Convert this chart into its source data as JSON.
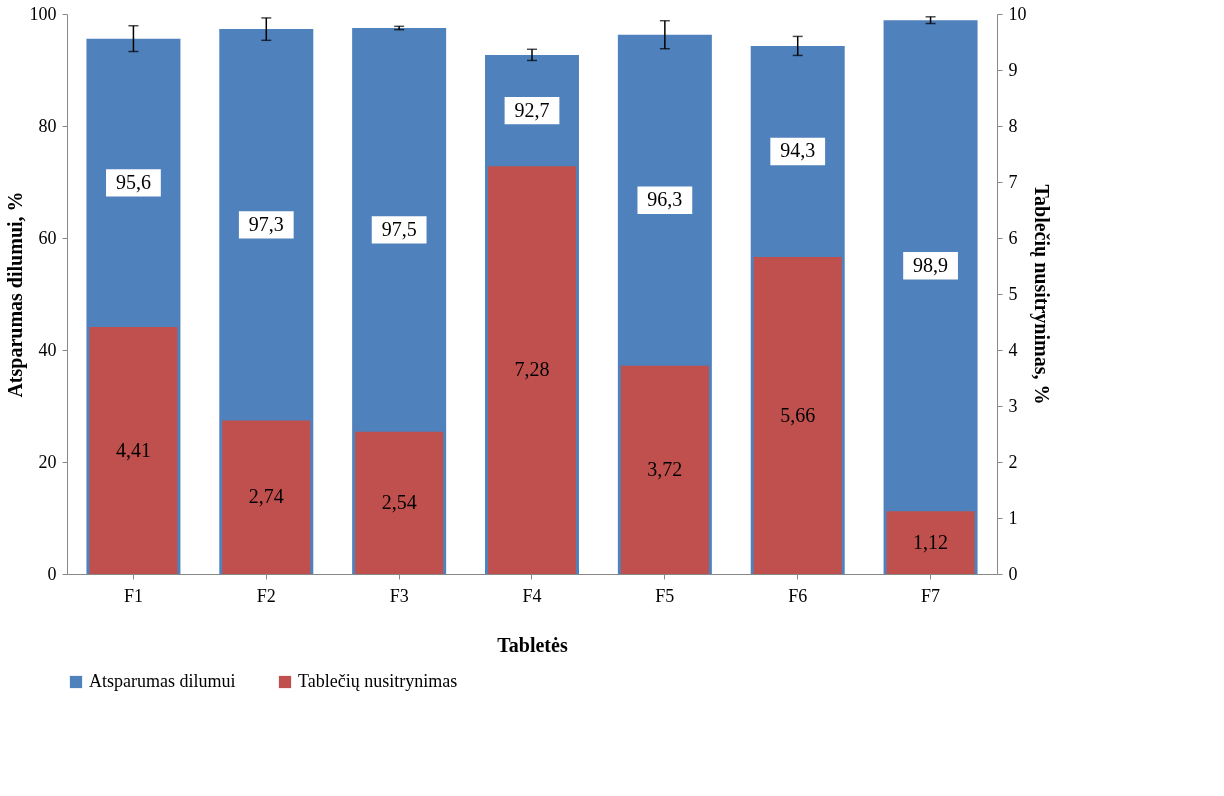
{
  "chart_data": {
    "type": "bar",
    "xlabel": "Tabletės",
    "ylabel": "Atsparumas dilumui, %",
    "y2label": "Tablečių nusitrynimas, %",
    "categories": [
      "F1",
      "F2",
      "F3",
      "F4",
      "F5",
      "F6",
      "F7"
    ],
    "series": [
      {
        "name": "Atsparumas dilumui",
        "color": "#4f81bd",
        "values": [
          95.6,
          97.3,
          97.5,
          92.7,
          96.3,
          94.3,
          98.9
        ],
        "errors": [
          2.3,
          2.0,
          0.3,
          1.0,
          2.5,
          1.7,
          0.6
        ],
        "value_labels": [
          "95,6",
          "97,3",
          "97,5",
          "92,7",
          "96,3",
          "94,3",
          "98,9"
        ]
      },
      {
        "name": "Tablečių nusitrynimas",
        "color": "#c0504d",
        "axis": "y2",
        "values": [
          4.41,
          2.74,
          2.54,
          7.28,
          3.72,
          5.66,
          1.12
        ],
        "value_labels": [
          "4,41",
          "2,74",
          "2,54",
          "7,28",
          "3,72",
          "5,66",
          "1,12"
        ]
      }
    ],
    "ylim": [
      0,
      100
    ],
    "yticks": [
      0,
      20,
      40,
      60,
      80,
      100
    ],
    "y2lim": [
      0,
      10
    ],
    "y2ticks": [
      0,
      1,
      2,
      3,
      4,
      5,
      6,
      7,
      8,
      9,
      10
    ],
    "grid": false,
    "legend": "bottom"
  }
}
